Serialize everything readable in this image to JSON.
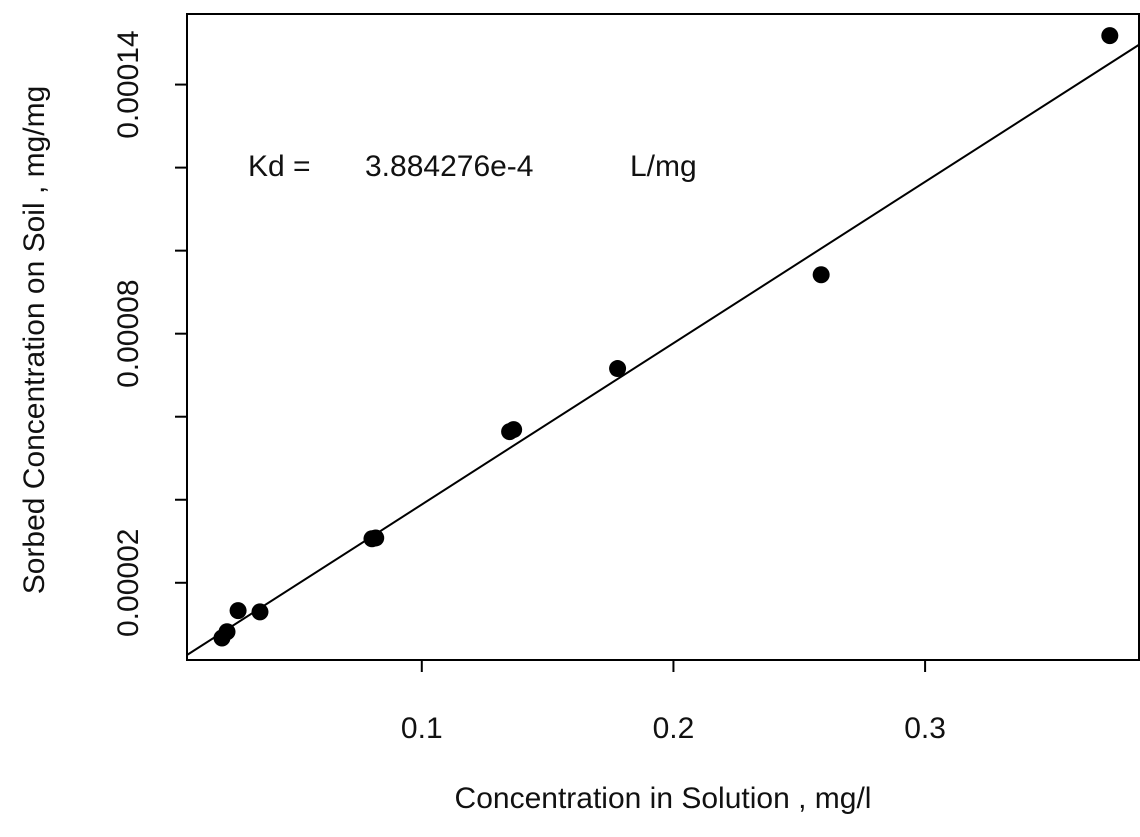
{
  "chart_data": {
    "type": "scatter",
    "x_label": "Concentration in Solution , mg/l",
    "y_label": "Sorbed Concentration on Soil , mg/mg",
    "annotation": {
      "label": "Kd =",
      "value": "3.884276e-4",
      "unit": "L/mg"
    },
    "x": [
      0.0206,
      0.0226,
      0.027,
      0.0357,
      0.0802,
      0.0817,
      0.1349,
      0.1365,
      0.1778,
      0.2587,
      0.3734
    ],
    "series": [
      {
        "color": "#000000",
        "values": [
          6.7e-06,
          8.2e-06,
          1.33e-05,
          1.3e-05,
          3.06e-05,
          3.08e-05,
          5.64e-05,
          5.69e-05,
          7.16e-05,
          9.42e-05,
          0.0001518
        ]
      }
    ],
    "fit_line": {
      "color": "#000000",
      "x": [
        0.0067,
        0.385
      ],
      "values": [
        2.6e-06,
        0.0001496
      ]
    },
    "xlim": [
      0.0067,
      0.385
    ],
    "ylim": [
      1.4e-06,
      0.000157
    ],
    "xticks": [
      0.1,
      0.2,
      0.3
    ],
    "yticks": [
      2e-05,
      8e-05,
      0.00014
    ],
    "yminor_ticks": [
      4e-05,
      6e-05,
      0.0001,
      0.00012
    ],
    "grid": false
  }
}
